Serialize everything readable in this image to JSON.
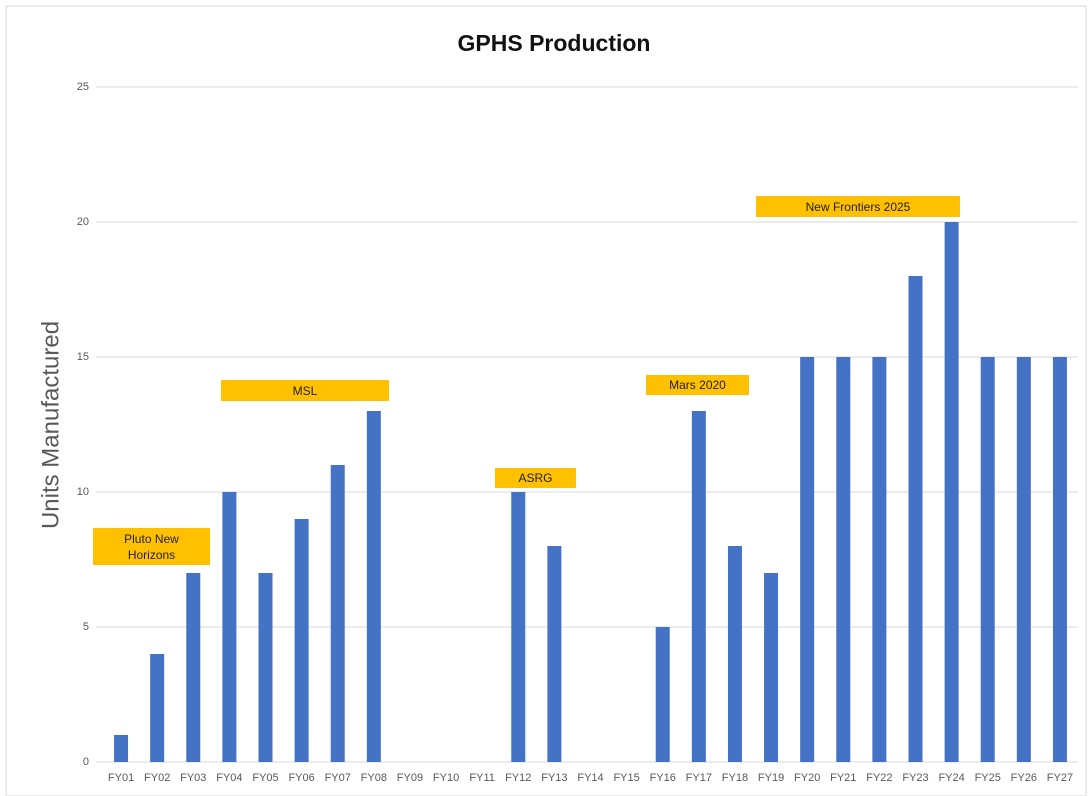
{
  "chart_data": {
    "type": "bar",
    "title": "GPHS Production",
    "y_label": "Units Manufactured",
    "categories": [
      "FY01",
      "FY02",
      "FY03",
      "FY04",
      "FY05",
      "FY06",
      "FY07",
      "FY08",
      "FY09",
      "FY10",
      "FY11",
      "FY12",
      "FY13",
      "FY14",
      "FY15",
      "FY16",
      "FY17",
      "FY18",
      "FY19",
      "FY20",
      "FY21",
      "FY22",
      "FY23",
      "FY24",
      "FY25",
      "FY26",
      "FY27"
    ],
    "values": [
      1,
      4,
      7,
      10,
      7,
      9,
      11,
      13,
      0,
      0,
      0,
      10,
      8,
      0,
      0,
      5,
      13,
      8,
      7,
      15,
      15,
      15,
      18,
      20,
      15,
      15,
      15
    ],
    "color": "#4472c4",
    "ylim": [
      0,
      25
    ],
    "yticks": [
      0,
      5,
      10,
      15,
      20,
      25
    ],
    "grid": true,
    "annotations": [
      "Pluto New Horizons",
      "MSL",
      "ASRG",
      "Mars 2020",
      "New Frontiers 2025"
    ],
    "annotation_color": "#ffc000"
  }
}
